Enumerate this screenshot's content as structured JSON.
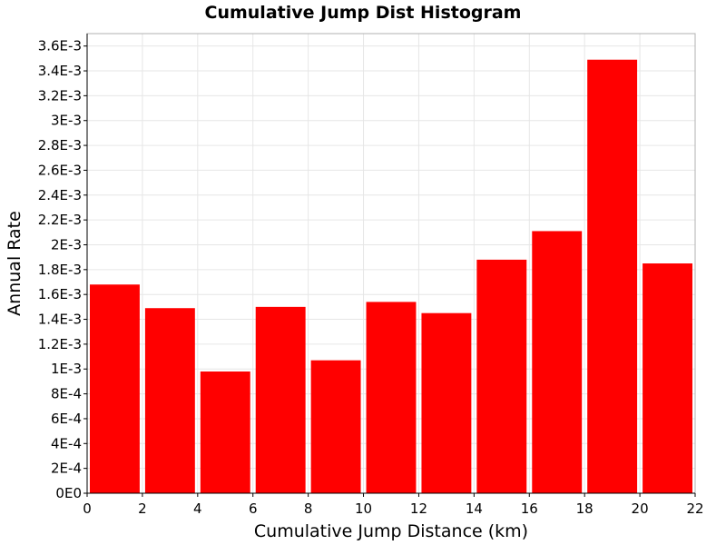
{
  "chart_data": {
    "type": "bar",
    "title": "Cumulative Jump Dist Histogram",
    "xlabel": "Cumulative Jump Distance (km)",
    "ylabel": "Annual Rate",
    "xlim": [
      0,
      22
    ],
    "ylim": [
      0,
      0.0037
    ],
    "grid": true,
    "bar_color": "#ff0000",
    "x_ticks": [
      {
        "value": 0,
        "label": "0"
      },
      {
        "value": 2,
        "label": "2"
      },
      {
        "value": 4,
        "label": "4"
      },
      {
        "value": 6,
        "label": "6"
      },
      {
        "value": 8,
        "label": "8"
      },
      {
        "value": 10,
        "label": "10"
      },
      {
        "value": 12,
        "label": "12"
      },
      {
        "value": 14,
        "label": "14"
      },
      {
        "value": 16,
        "label": "16"
      },
      {
        "value": 18,
        "label": "18"
      },
      {
        "value": 20,
        "label": "20"
      },
      {
        "value": 22,
        "label": "22"
      }
    ],
    "y_ticks": [
      {
        "value": 0,
        "label": "0E0"
      },
      {
        "value": 0.0002,
        "label": "2E-4"
      },
      {
        "value": 0.0004,
        "label": "4E-4"
      },
      {
        "value": 0.0006,
        "label": "6E-4"
      },
      {
        "value": 0.0008,
        "label": "8E-4"
      },
      {
        "value": 0.001,
        "label": "1E-3"
      },
      {
        "value": 0.0012,
        "label": "1.2E-3"
      },
      {
        "value": 0.0014,
        "label": "1.4E-3"
      },
      {
        "value": 0.0016,
        "label": "1.6E-3"
      },
      {
        "value": 0.0018,
        "label": "1.8E-3"
      },
      {
        "value": 0.002,
        "label": "2E-3"
      },
      {
        "value": 0.0022,
        "label": "2.2E-3"
      },
      {
        "value": 0.0024,
        "label": "2.4E-3"
      },
      {
        "value": 0.0026,
        "label": "2.6E-3"
      },
      {
        "value": 0.0028,
        "label": "2.8E-3"
      },
      {
        "value": 0.003,
        "label": "3E-3"
      },
      {
        "value": 0.0032,
        "label": "3.2E-3"
      },
      {
        "value": 0.0034,
        "label": "3.4E-3"
      },
      {
        "value": 0.0036,
        "label": "3.6E-3"
      }
    ],
    "bins": [
      {
        "x0": 0,
        "x1": 2,
        "value": 0.00168
      },
      {
        "x0": 2,
        "x1": 4,
        "value": 0.00149
      },
      {
        "x0": 4,
        "x1": 6,
        "value": 0.00098
      },
      {
        "x0": 6,
        "x1": 8,
        "value": 0.0015
      },
      {
        "x0": 8,
        "x1": 10,
        "value": 0.00107
      },
      {
        "x0": 10,
        "x1": 12,
        "value": 0.00154
      },
      {
        "x0": 12,
        "x1": 14,
        "value": 0.00145
      },
      {
        "x0": 14,
        "x1": 16,
        "value": 0.00188
      },
      {
        "x0": 16,
        "x1": 18,
        "value": 0.00211
      },
      {
        "x0": 18,
        "x1": 20,
        "value": 0.00349
      },
      {
        "x0": 20,
        "x1": 22,
        "value": 0.00185
      }
    ]
  }
}
